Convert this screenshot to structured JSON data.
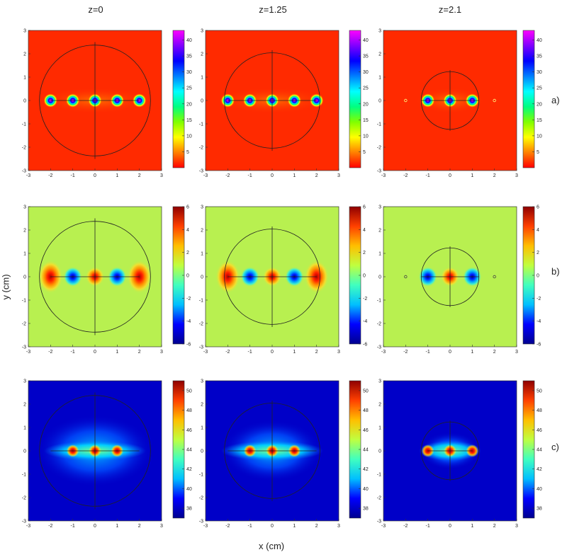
{
  "columns": [
    {
      "title": "z=0"
    },
    {
      "title": "z=1.25"
    },
    {
      "title": "z=2.1"
    }
  ],
  "rows": [
    {
      "label": "a)"
    },
    {
      "label": "b)"
    },
    {
      "label": "c)"
    }
  ],
  "axes": {
    "xlabel": "x (cm)",
    "ylabel": "y (cm)"
  },
  "chart_data": [
    {
      "type": "heatmap",
      "row": "a)",
      "title": "z=0",
      "xlim": [
        -3,
        3
      ],
      "ylim": [
        -3,
        3
      ],
      "xticks": [
        -3,
        -2,
        -1,
        0,
        1,
        2,
        3
      ],
      "yticks": [
        -3,
        -2,
        -1,
        0,
        1,
        2,
        3
      ],
      "colormap": "hsv-like",
      "cbar_range": [
        0,
        43
      ],
      "cbar_ticks": [
        5,
        10,
        15,
        20,
        25,
        30,
        35,
        40
      ],
      "circle_radius": 2.5,
      "hot_spots": [
        -2,
        -1,
        0,
        1,
        2
      ],
      "background": "low"
    },
    {
      "type": "heatmap",
      "row": "a)",
      "title": "z=1.25",
      "xlim": [
        -3,
        3
      ],
      "ylim": [
        -3,
        3
      ],
      "xticks": [
        -3,
        -2,
        -1,
        0,
        1,
        2,
        3
      ],
      "yticks": [
        -3,
        -2,
        -1,
        0,
        1,
        2,
        3
      ],
      "colormap": "hsv-like",
      "cbar_range": [
        0,
        43
      ],
      "cbar_ticks": [
        5,
        10,
        15,
        20,
        25,
        30,
        35,
        40
      ],
      "circle_radius": 2.15,
      "hot_spots": [
        -2,
        -1,
        0,
        1,
        2
      ],
      "background": "low"
    },
    {
      "type": "heatmap",
      "row": "a)",
      "title": "z=2.1",
      "xlim": [
        -3,
        3
      ],
      "ylim": [
        -3,
        3
      ],
      "xticks": [
        -3,
        -2,
        -1,
        0,
        1,
        2,
        3
      ],
      "yticks": [
        -3,
        -2,
        -1,
        0,
        1,
        2,
        3
      ],
      "colormap": "hsv-like",
      "cbar_range": [
        0,
        43
      ],
      "cbar_ticks": [
        5,
        10,
        15,
        20,
        25,
        30,
        35,
        40
      ],
      "circle_radius": 1.3,
      "hot_spots": [
        -1,
        0,
        1
      ],
      "background": "low"
    },
    {
      "type": "heatmap",
      "row": "b)",
      "title": "z=0",
      "xlim": [
        -3,
        3
      ],
      "ylim": [
        -3,
        3
      ],
      "xticks": [
        -3,
        -2,
        -1,
        0,
        1,
        2,
        3
      ],
      "yticks": [
        -3,
        -2,
        -1,
        0,
        1,
        2,
        3
      ],
      "colormap": "jet",
      "cbar_range": [
        -6,
        6
      ],
      "cbar_ticks": [
        -6,
        -4,
        -2,
        0,
        2,
        4,
        6
      ],
      "circle_radius": 2.5,
      "spots": [
        {
          "x": -2,
          "v": 5
        },
        {
          "x": -1,
          "v": -6
        },
        {
          "x": 0,
          "v": 5
        },
        {
          "x": 1,
          "v": -6
        },
        {
          "x": 2,
          "v": 5
        }
      ]
    },
    {
      "type": "heatmap",
      "row": "b)",
      "title": "z=1.25",
      "xlim": [
        -3,
        3
      ],
      "ylim": [
        -3,
        3
      ],
      "xticks": [
        -3,
        -2,
        -1,
        0,
        1,
        2,
        3
      ],
      "yticks": [
        -3,
        -2,
        -1,
        0,
        1,
        2,
        3
      ],
      "colormap": "jet",
      "cbar_range": [
        -6,
        6
      ],
      "cbar_ticks": [
        -6,
        -4,
        -2,
        0,
        2,
        4,
        6
      ],
      "circle_radius": 2.15,
      "spots": [
        {
          "x": -2,
          "v": 5
        },
        {
          "x": -1,
          "v": -6
        },
        {
          "x": 0,
          "v": 5
        },
        {
          "x": 1,
          "v": -6
        },
        {
          "x": 2,
          "v": 5
        }
      ]
    },
    {
      "type": "heatmap",
      "row": "b)",
      "title": "z=2.1",
      "xlim": [
        -3,
        3
      ],
      "ylim": [
        -3,
        3
      ],
      "xticks": [
        -3,
        -2,
        -1,
        0,
        1,
        2,
        3
      ],
      "yticks": [
        -3,
        -2,
        -1,
        0,
        1,
        2,
        3
      ],
      "colormap": "jet",
      "cbar_range": [
        -6,
        6
      ],
      "cbar_ticks": [
        -6,
        -4,
        -2,
        0,
        2,
        4,
        6
      ],
      "circle_radius": 1.3,
      "spots": [
        {
          "x": -1,
          "v": -6
        },
        {
          "x": 0,
          "v": 5
        },
        {
          "x": 1,
          "v": -6
        }
      ]
    },
    {
      "type": "heatmap",
      "row": "c)",
      "title": "z=0",
      "xlim": [
        -3,
        3
      ],
      "ylim": [
        -3,
        3
      ],
      "xticks": [
        -3,
        -2,
        -1,
        0,
        1,
        2,
        3
      ],
      "yticks": [
        -3,
        -2,
        -1,
        0,
        1,
        2,
        3
      ],
      "colormap": "jet",
      "cbar_range": [
        37,
        51
      ],
      "cbar_ticks": [
        38,
        40,
        42,
        44,
        46,
        48,
        50
      ],
      "circle_radius": 2.5,
      "hot_spots": [
        -1,
        0,
        1
      ]
    },
    {
      "type": "heatmap",
      "row": "c)",
      "title": "z=1.25",
      "xlim": [
        -3,
        3
      ],
      "ylim": [
        -3,
        3
      ],
      "xticks": [
        -3,
        -2,
        -1,
        0,
        1,
        2,
        3
      ],
      "yticks": [
        -3,
        -2,
        -1,
        0,
        1,
        2,
        3
      ],
      "colormap": "jet",
      "cbar_range": [
        37,
        51
      ],
      "cbar_ticks": [
        38,
        40,
        42,
        44,
        46,
        48,
        50
      ],
      "circle_radius": 2.15,
      "hot_spots": [
        -1,
        0,
        1
      ]
    },
    {
      "type": "heatmap",
      "row": "c)",
      "title": "z=2.1",
      "xlim": [
        -3,
        3
      ],
      "ylim": [
        -3,
        3
      ],
      "xticks": [
        -3,
        -2,
        -1,
        0,
        1,
        2,
        3
      ],
      "yticks": [
        -3,
        -2,
        -1,
        0,
        1,
        2,
        3
      ],
      "colormap": "jet",
      "cbar_range": [
        37,
        51
      ],
      "cbar_ticks": [
        38,
        40,
        42,
        44,
        46,
        48,
        50
      ],
      "circle_radius": 1.3,
      "hot_spots": [
        -1,
        0,
        1
      ]
    }
  ]
}
